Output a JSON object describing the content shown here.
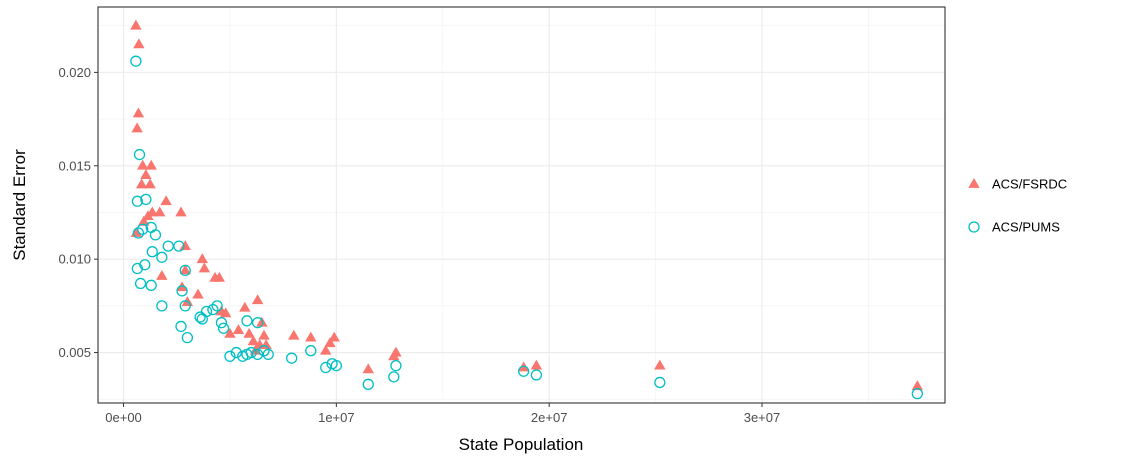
{
  "chart_data": {
    "type": "scatter",
    "title": "",
    "xlabel": "State Population",
    "ylabel": "Standard Error",
    "xlim": [
      -1200000,
      38600000
    ],
    "ylim": [
      0.0023,
      0.0235
    ],
    "x_ticks": [
      {
        "value": 0,
        "label": "0e+00"
      },
      {
        "value": 10000000,
        "label": "1e+07"
      },
      {
        "value": 20000000,
        "label": "2e+07"
      },
      {
        "value": 30000000,
        "label": "3e+07"
      }
    ],
    "y_ticks": [
      {
        "value": 0.005,
        "label": "0.005"
      },
      {
        "value": 0.01,
        "label": "0.010"
      },
      {
        "value": 0.015,
        "label": "0.015"
      },
      {
        "value": 0.02,
        "label": "0.020"
      }
    ],
    "grid": true,
    "legend_position": "right",
    "series": [
      {
        "name": "ACS/FSRDC",
        "marker": "triangle",
        "color": "#F8766D",
        "points": [
          [
            580000,
            0.0225
          ],
          [
            720000,
            0.0215
          ],
          [
            700000,
            0.0178
          ],
          [
            640000,
            0.017
          ],
          [
            900000,
            0.015
          ],
          [
            1300000,
            0.015
          ],
          [
            1050000,
            0.0145
          ],
          [
            1250000,
            0.014
          ],
          [
            850000,
            0.014
          ],
          [
            2000000,
            0.0131
          ],
          [
            1700000,
            0.0125
          ],
          [
            2700000,
            0.0125
          ],
          [
            1350000,
            0.0125
          ],
          [
            950000,
            0.012
          ],
          [
            1150000,
            0.0123
          ],
          [
            2900000,
            0.0107
          ],
          [
            600000,
            0.0114
          ],
          [
            3700000,
            0.01
          ],
          [
            3800000,
            0.0095
          ],
          [
            4300000,
            0.009
          ],
          [
            4500000,
            0.009
          ],
          [
            1800000,
            0.0091
          ],
          [
            2900000,
            0.0094
          ],
          [
            2750000,
            0.0085
          ],
          [
            3500000,
            0.0081
          ],
          [
            3000000,
            0.0077
          ],
          [
            4600000,
            0.0072
          ],
          [
            4800000,
            0.0071
          ],
          [
            6300000,
            0.0078
          ],
          [
            5700000,
            0.0074
          ],
          [
            5000000,
            0.006
          ],
          [
            5400000,
            0.0062
          ],
          [
            5900000,
            0.006
          ],
          [
            6500000,
            0.0066
          ],
          [
            6600000,
            0.0059
          ],
          [
            6100000,
            0.0056
          ],
          [
            6400000,
            0.0054
          ],
          [
            6200000,
            0.0051
          ],
          [
            6700000,
            0.0054
          ],
          [
            8000000,
            0.0059
          ],
          [
            8800000,
            0.0058
          ],
          [
            9700000,
            0.0055
          ],
          [
            9900000,
            0.0058
          ],
          [
            9500000,
            0.0051
          ],
          [
            11500000,
            0.0041
          ],
          [
            12700000,
            0.0048
          ],
          [
            12800000,
            0.005
          ],
          [
            18800000,
            0.0042
          ],
          [
            19400000,
            0.0043
          ],
          [
            25200000,
            0.0043
          ],
          [
            37300000,
            0.0032
          ]
        ]
      },
      {
        "name": "ACS/PUMS",
        "marker": "circle",
        "color": "#00BFC4",
        "points": [
          [
            580000,
            0.0206
          ],
          [
            750000,
            0.0156
          ],
          [
            650000,
            0.0131
          ],
          [
            1050000,
            0.0132
          ],
          [
            700000,
            0.0114
          ],
          [
            900000,
            0.0116
          ],
          [
            1300000,
            0.0117
          ],
          [
            1500000,
            0.0113
          ],
          [
            1350000,
            0.0104
          ],
          [
            1800000,
            0.0101
          ],
          [
            2100000,
            0.0107
          ],
          [
            2600000,
            0.0107
          ],
          [
            650000,
            0.0095
          ],
          [
            1000000,
            0.0097
          ],
          [
            2900000,
            0.0094
          ],
          [
            800000,
            0.0087
          ],
          [
            1300000,
            0.0086
          ],
          [
            1800000,
            0.0075
          ],
          [
            2750000,
            0.0083
          ],
          [
            2900000,
            0.0075
          ],
          [
            3600000,
            0.0069
          ],
          [
            3700000,
            0.0068
          ],
          [
            3900000,
            0.0072
          ],
          [
            4200000,
            0.0073
          ],
          [
            4400000,
            0.0075
          ],
          [
            4600000,
            0.0066
          ],
          [
            4700000,
            0.0063
          ],
          [
            2700000,
            0.0064
          ],
          [
            3000000,
            0.0058
          ],
          [
            5800000,
            0.0067
          ],
          [
            6300000,
            0.0066
          ],
          [
            5000000,
            0.0048
          ],
          [
            5300000,
            0.005
          ],
          [
            5600000,
            0.0048
          ],
          [
            5800000,
            0.0049
          ],
          [
            6000000,
            0.005
          ],
          [
            6300000,
            0.0049
          ],
          [
            6600000,
            0.0051
          ],
          [
            6800000,
            0.0049
          ],
          [
            7900000,
            0.0047
          ],
          [
            8800000,
            0.0051
          ],
          [
            9500000,
            0.0042
          ],
          [
            9800000,
            0.0044
          ],
          [
            10000000,
            0.0043
          ],
          [
            11500000,
            0.0033
          ],
          [
            12700000,
            0.0037
          ],
          [
            12800000,
            0.0043
          ],
          [
            18800000,
            0.004
          ],
          [
            19400000,
            0.0038
          ],
          [
            25200000,
            0.0034
          ],
          [
            37300000,
            0.0028
          ]
        ]
      }
    ]
  }
}
